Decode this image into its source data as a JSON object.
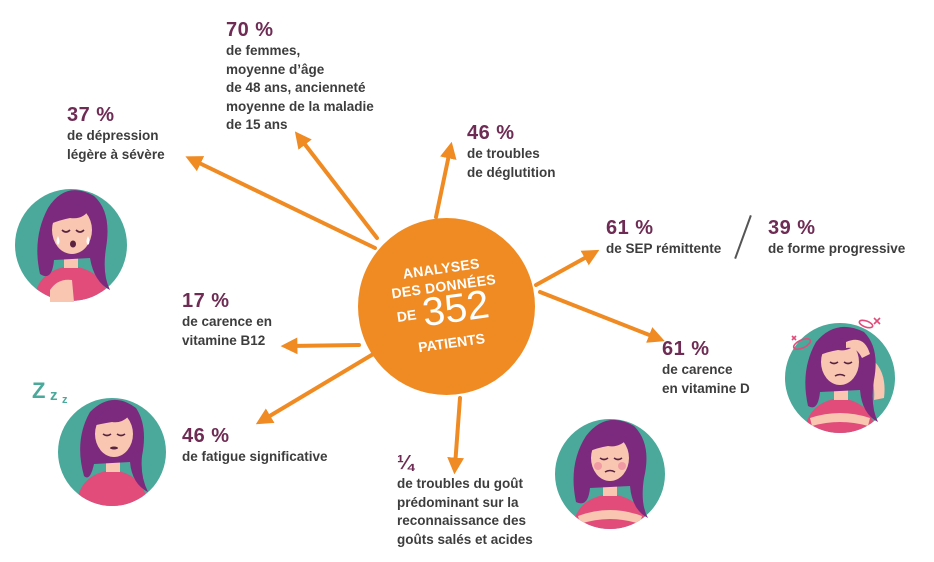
{
  "center": {
    "line1": "ANALYSES",
    "line2": "DES DONNÉES",
    "de": "DE",
    "number": "352",
    "line4": "PATIENTS"
  },
  "stats": {
    "women": {
      "pct": "70 %",
      "text": "de femmes,\nmoyenne d’âge\nde 48 ans, ancienneté\nmoyenne de la maladie\nde 15 ans"
    },
    "depression": {
      "pct": "37 %",
      "text": "de dépression\nlégère à sévère"
    },
    "swallowing": {
      "pct": "46 %",
      "text": "de troubles\nde déglutition"
    },
    "relapsing": {
      "pct": "61 %",
      "text": "de SEP rémittente"
    },
    "progressive": {
      "pct": "39 %",
      "text": "de forme progressive"
    },
    "b12": {
      "pct": "17 %",
      "text": "de carence en\nvitamine B12"
    },
    "vitd": {
      "pct": "61 %",
      "text": "de carence\nen vitamine D"
    },
    "fatigue": {
      "pct": "46 %",
      "text": "de fatigue significative"
    },
    "taste": {
      "pct": "¼",
      "text": "de troubles du goût\nprédominant sur la\nreconnaissance des\ngoûts salés et acides"
    }
  },
  "colors": {
    "orange": "#ef8b22",
    "teal": "#4aa99a",
    "plum": "#6e2c54",
    "hair": "#7b2a7e",
    "shirt": "#e14c7b",
    "skin": "#f8c6b1"
  },
  "icons": {
    "sleep": "Zzz"
  }
}
